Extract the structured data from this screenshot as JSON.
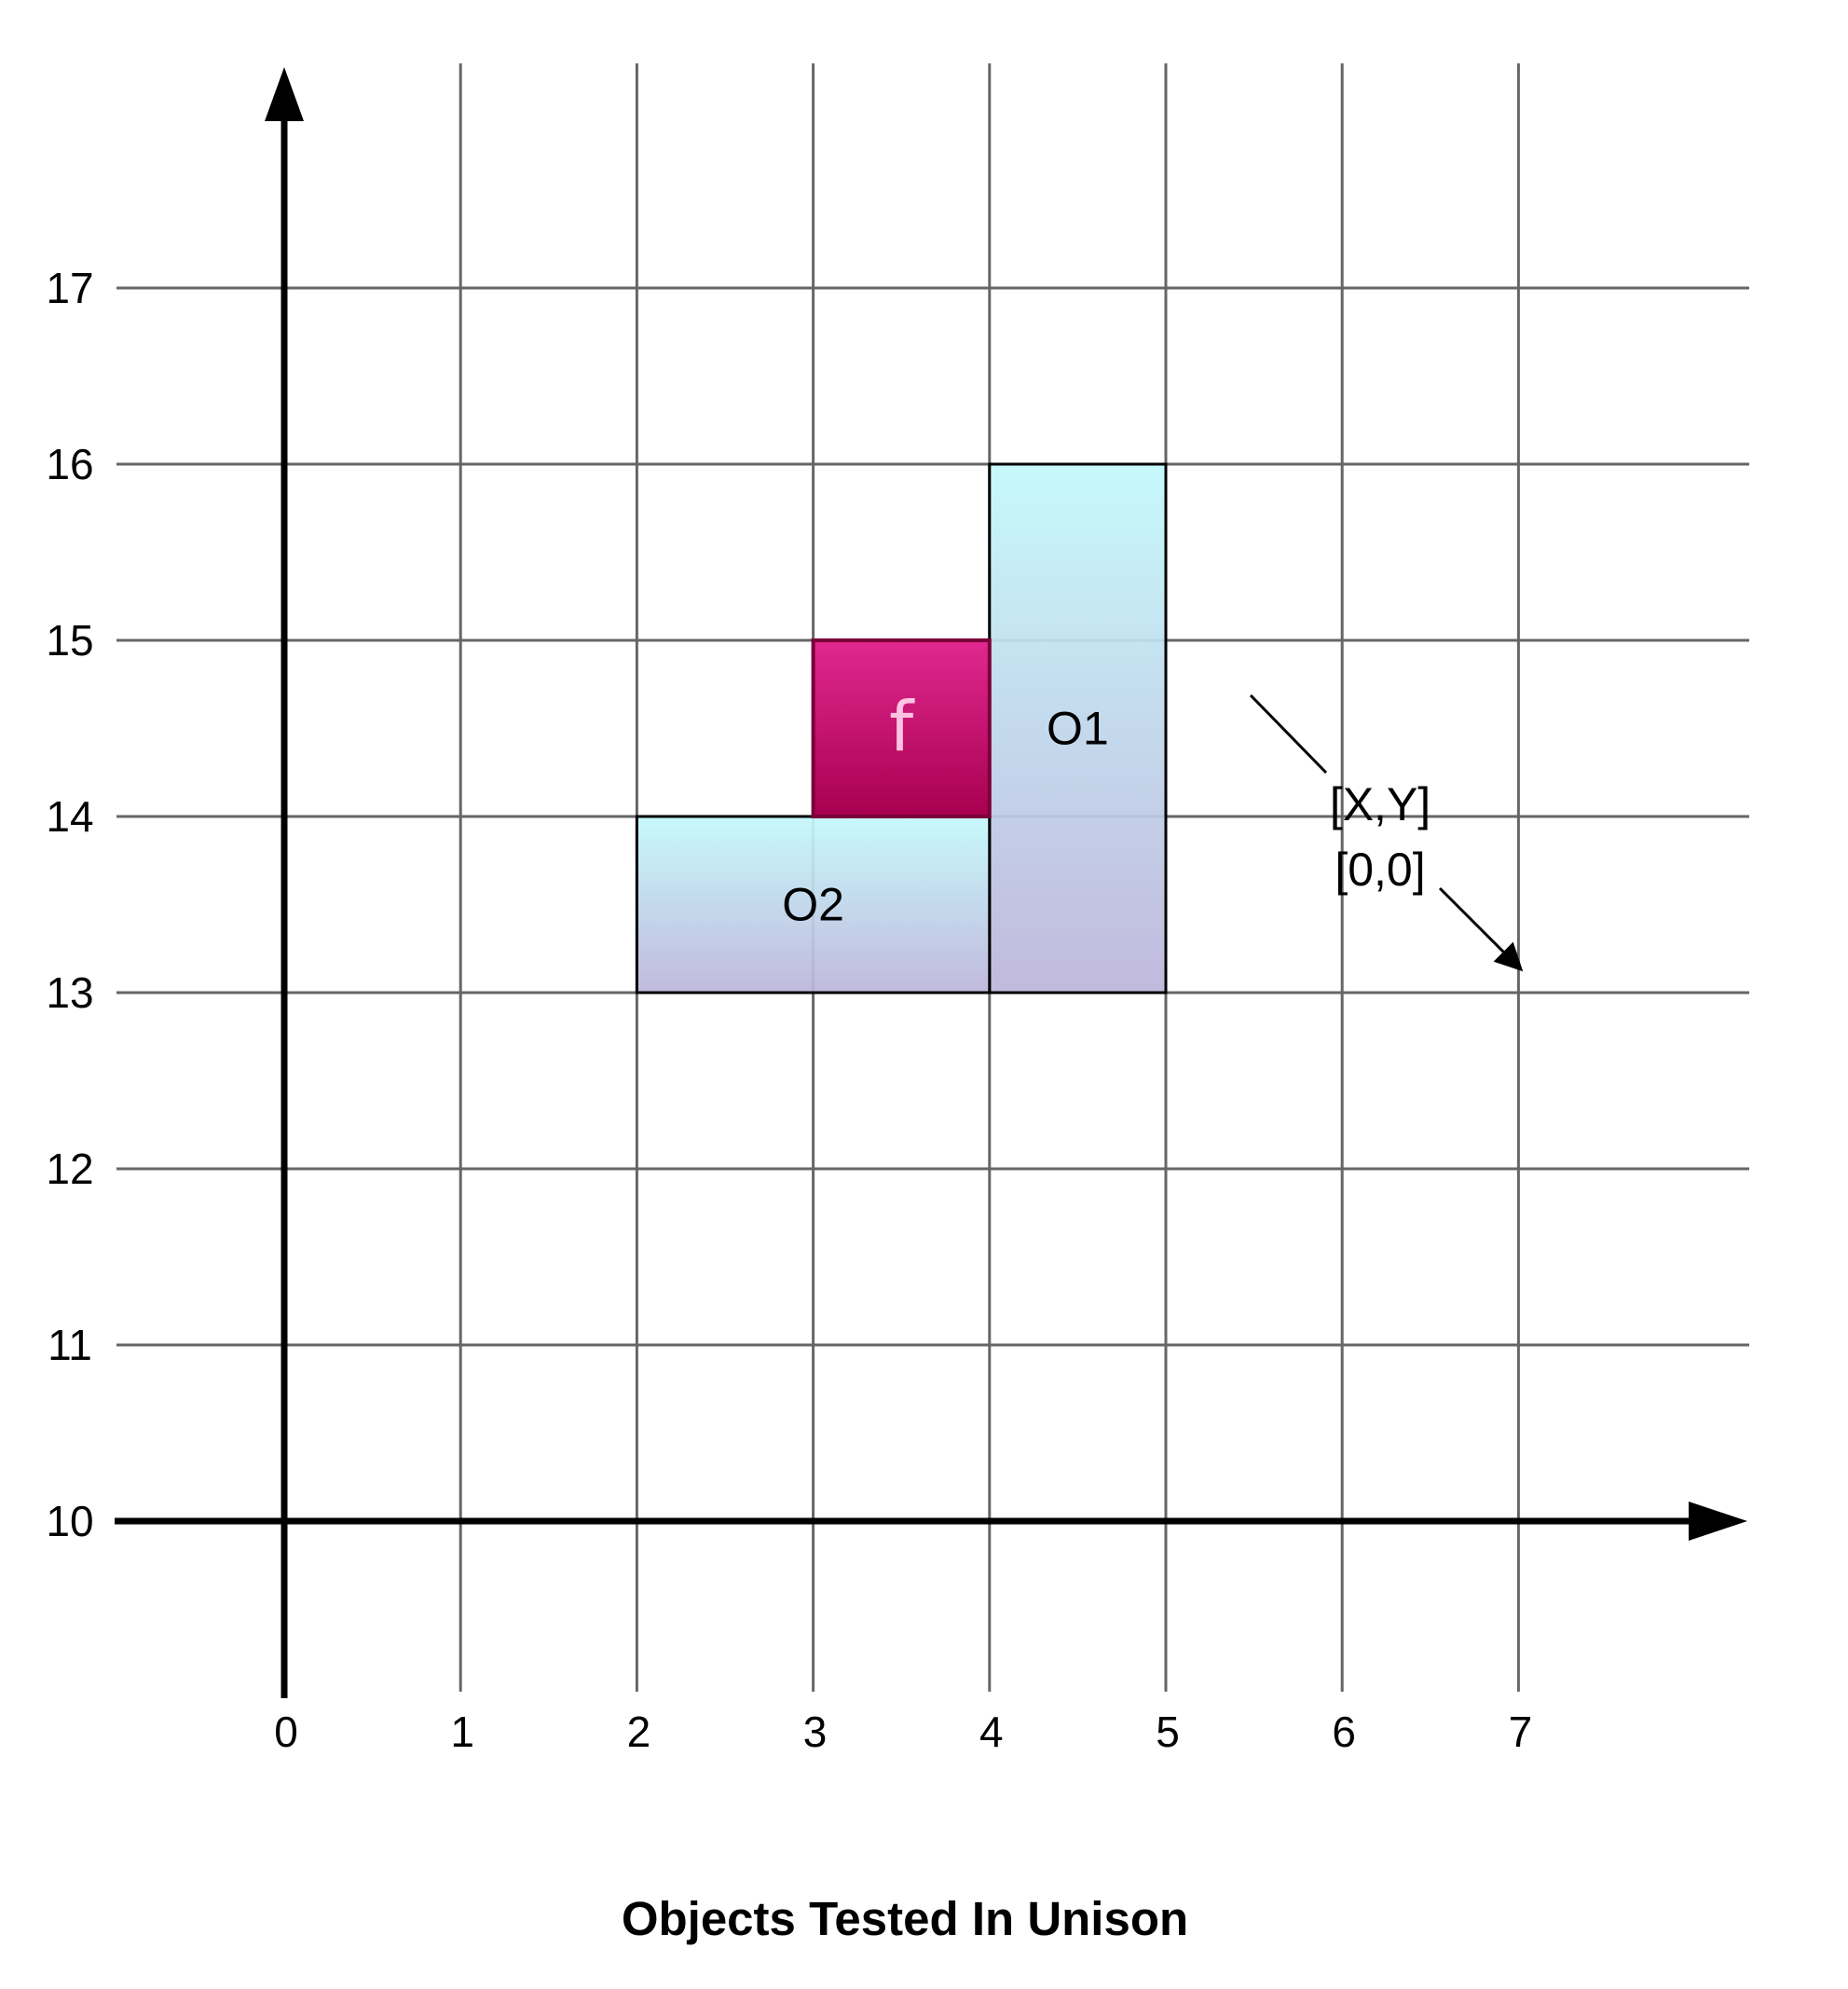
{
  "chart_data": {
    "type": "diagram",
    "title": "Objects Tested In Unison",
    "x_ticks": [
      0,
      1,
      2,
      3,
      4,
      5,
      6,
      7
    ],
    "y_ticks": [
      10,
      11,
      12,
      13,
      14,
      15,
      16,
      17
    ],
    "xlim": [
      0,
      7
    ],
    "ylim": [
      10,
      17
    ],
    "grid": true,
    "objects": [
      {
        "label": "O1",
        "x0": 4,
        "x1": 5,
        "y0": 13,
        "y1": 16,
        "style": "cyan"
      },
      {
        "label": "O2",
        "x0": 2,
        "x1": 4,
        "y0": 13,
        "y1": 14,
        "style": "cyan"
      },
      {
        "label": "f",
        "x0": 3,
        "x1": 4,
        "y0": 14,
        "y1": 15,
        "style": "magenta"
      }
    ],
    "annotation": {
      "lines": [
        "[X,Y]",
        "[0,0]"
      ]
    }
  },
  "colors": {
    "grid": "#666666",
    "axis": "#000000",
    "object_top": "#c2f8fb",
    "object_bottom": "#bcb4da",
    "f_top": "#e0288f",
    "f_bottom": "#a80050",
    "f_text": "#ffc3e2"
  }
}
